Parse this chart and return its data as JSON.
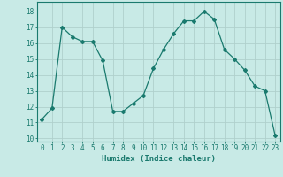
{
  "x": [
    0,
    1,
    2,
    3,
    4,
    5,
    6,
    7,
    8,
    9,
    10,
    11,
    12,
    13,
    14,
    15,
    16,
    17,
    18,
    19,
    20,
    21,
    22,
    23
  ],
  "y": [
    11.2,
    11.9,
    17.0,
    16.4,
    16.1,
    16.1,
    14.9,
    11.7,
    11.7,
    12.2,
    12.7,
    14.4,
    15.6,
    16.6,
    17.4,
    17.4,
    18.0,
    17.5,
    15.6,
    15.0,
    14.3,
    13.3,
    13.0,
    10.2
  ],
  "line_color": "#1a7a6e",
  "marker": "D",
  "marker_size": 2,
  "bg_color": "#c8eae6",
  "grid_color": "#b0d0cc",
  "xlabel": "Humidex (Indice chaleur)",
  "ylim": [
    9.8,
    18.6
  ],
  "xlim": [
    -0.5,
    23.5
  ],
  "yticks": [
    10,
    11,
    12,
    13,
    14,
    15,
    16,
    17,
    18
  ],
  "xticks": [
    0,
    1,
    2,
    3,
    4,
    5,
    6,
    7,
    8,
    9,
    10,
    11,
    12,
    13,
    14,
    15,
    16,
    17,
    18,
    19,
    20,
    21,
    22,
    23
  ],
  "tick_color": "#1a7a6e",
  "label_fontsize": 5.5,
  "axis_fontsize": 6.5
}
